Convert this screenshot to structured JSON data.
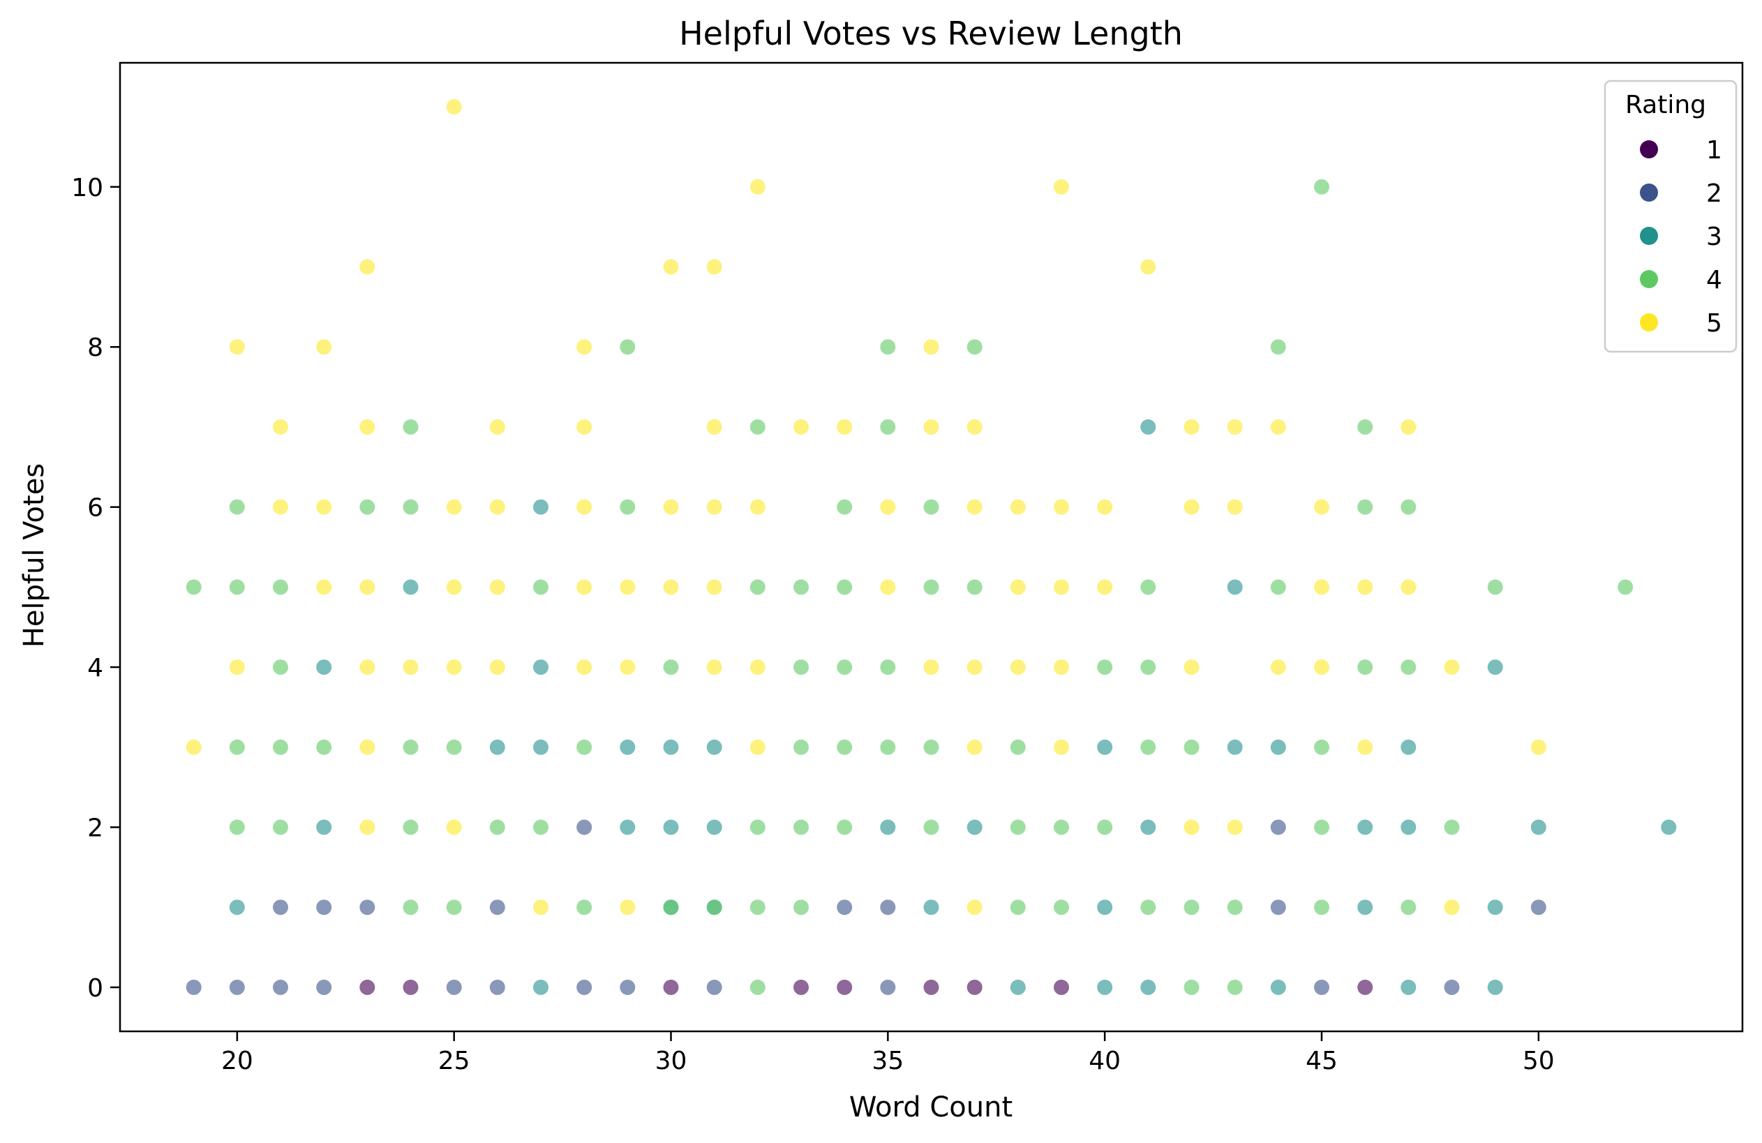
{
  "chart_data": {
    "type": "scatter",
    "title": "Helpful Votes vs Review Length",
    "xlabel": "Word Count",
    "ylabel": "Helpful Votes",
    "xlim": [
      17.3,
      54.7
    ],
    "ylim": [
      -0.55,
      11.55
    ],
    "xticks": [
      20,
      25,
      30,
      35,
      40,
      45,
      50
    ],
    "yticks": [
      0,
      2,
      4,
      6,
      8,
      10
    ],
    "grid": false,
    "legend": {
      "title": "Rating",
      "placement": "top-right",
      "entries": [
        {
          "label": "1",
          "color": "#440154"
        },
        {
          "label": "2",
          "color": "#3b528b"
        },
        {
          "label": "3",
          "color": "#21918c"
        },
        {
          "label": "4",
          "color": "#5ec962"
        },
        {
          "label": "5",
          "color": "#fde725"
        }
      ]
    },
    "colors": {
      "1": "#440154",
      "2": "#3b528b",
      "3": "#21918c",
      "4": "#5ec962",
      "5": "#fde725"
    },
    "series": [
      {
        "name": "1",
        "points": [
          [
            23,
            0
          ],
          [
            24,
            0
          ],
          [
            30,
            0
          ],
          [
            33,
            0
          ],
          [
            34,
            0
          ],
          [
            36,
            0
          ],
          [
            37,
            0
          ],
          [
            39,
            0
          ],
          [
            46,
            0
          ]
        ]
      },
      {
        "name": "2",
        "points": [
          [
            19,
            0
          ],
          [
            20,
            0
          ],
          [
            21,
            0
          ],
          [
            22,
            0
          ],
          [
            25,
            0
          ],
          [
            26,
            0
          ],
          [
            28,
            0
          ],
          [
            29,
            0
          ],
          [
            31,
            0
          ],
          [
            35,
            0
          ],
          [
            45,
            0
          ],
          [
            48,
            0
          ],
          [
            21,
            1
          ],
          [
            22,
            1
          ],
          [
            23,
            1
          ],
          [
            26,
            1
          ],
          [
            34,
            1
          ],
          [
            35,
            1
          ],
          [
            44,
            1
          ],
          [
            50,
            1
          ],
          [
            28,
            2
          ],
          [
            44,
            2
          ]
        ]
      },
      {
        "name": "3",
        "points": [
          [
            27,
            0
          ],
          [
            38,
            0
          ],
          [
            40,
            0
          ],
          [
            41,
            0
          ],
          [
            44,
            0
          ],
          [
            47,
            0
          ],
          [
            49,
            0
          ],
          [
            20,
            1
          ],
          [
            30,
            1
          ],
          [
            31,
            1
          ],
          [
            36,
            1
          ],
          [
            40,
            1
          ],
          [
            46,
            1
          ],
          [
            49,
            1
          ],
          [
            22,
            2
          ],
          [
            29,
            2
          ],
          [
            30,
            2
          ],
          [
            31,
            2
          ],
          [
            35,
            2
          ],
          [
            37,
            2
          ],
          [
            41,
            2
          ],
          [
            46,
            2
          ],
          [
            47,
            2
          ],
          [
            50,
            2
          ],
          [
            53,
            2
          ],
          [
            26,
            3
          ],
          [
            27,
            3
          ],
          [
            29,
            3
          ],
          [
            30,
            3
          ],
          [
            31,
            3
          ],
          [
            40,
            3
          ],
          [
            43,
            3
          ],
          [
            44,
            3
          ],
          [
            47,
            3
          ],
          [
            22,
            4
          ],
          [
            27,
            4
          ],
          [
            49,
            4
          ],
          [
            24,
            5
          ],
          [
            43,
            5
          ],
          [
            27,
            6
          ],
          [
            41,
            7
          ]
        ]
      },
      {
        "name": "4",
        "points": [
          [
            32,
            0
          ],
          [
            42,
            0
          ],
          [
            43,
            0
          ],
          [
            24,
            1
          ],
          [
            25,
            1
          ],
          [
            28,
            1
          ],
          [
            30,
            1
          ],
          [
            31,
            1
          ],
          [
            32,
            1
          ],
          [
            33,
            1
          ],
          [
            38,
            1
          ],
          [
            39,
            1
          ],
          [
            41,
            1
          ],
          [
            42,
            1
          ],
          [
            43,
            1
          ],
          [
            45,
            1
          ],
          [
            47,
            1
          ],
          [
            20,
            2
          ],
          [
            21,
            2
          ],
          [
            24,
            2
          ],
          [
            26,
            2
          ],
          [
            27,
            2
          ],
          [
            32,
            2
          ],
          [
            33,
            2
          ],
          [
            34,
            2
          ],
          [
            36,
            2
          ],
          [
            38,
            2
          ],
          [
            39,
            2
          ],
          [
            40,
            2
          ],
          [
            45,
            2
          ],
          [
            48,
            2
          ],
          [
            20,
            3
          ],
          [
            21,
            3
          ],
          [
            22,
            3
          ],
          [
            24,
            3
          ],
          [
            25,
            3
          ],
          [
            28,
            3
          ],
          [
            33,
            3
          ],
          [
            34,
            3
          ],
          [
            35,
            3
          ],
          [
            36,
            3
          ],
          [
            38,
            3
          ],
          [
            41,
            3
          ],
          [
            42,
            3
          ],
          [
            45,
            3
          ],
          [
            21,
            4
          ],
          [
            30,
            4
          ],
          [
            33,
            4
          ],
          [
            34,
            4
          ],
          [
            35,
            4
          ],
          [
            40,
            4
          ],
          [
            41,
            4
          ],
          [
            46,
            4
          ],
          [
            47,
            4
          ],
          [
            19,
            5
          ],
          [
            20,
            5
          ],
          [
            21,
            5
          ],
          [
            27,
            5
          ],
          [
            32,
            5
          ],
          [
            33,
            5
          ],
          [
            34,
            5
          ],
          [
            36,
            5
          ],
          [
            37,
            5
          ],
          [
            41,
            5
          ],
          [
            44,
            5
          ],
          [
            49,
            5
          ],
          [
            52,
            5
          ],
          [
            20,
            6
          ],
          [
            23,
            6
          ],
          [
            24,
            6
          ],
          [
            29,
            6
          ],
          [
            34,
            6
          ],
          [
            36,
            6
          ],
          [
            46,
            6
          ],
          [
            47,
            6
          ],
          [
            24,
            7
          ],
          [
            32,
            7
          ],
          [
            35,
            7
          ],
          [
            46,
            7
          ],
          [
            29,
            8
          ],
          [
            35,
            8
          ],
          [
            37,
            8
          ],
          [
            44,
            8
          ],
          [
            45,
            10
          ]
        ]
      },
      {
        "name": "5",
        "points": [
          [
            27,
            1
          ],
          [
            29,
            1
          ],
          [
            37,
            1
          ],
          [
            48,
            1
          ],
          [
            23,
            2
          ],
          [
            25,
            2
          ],
          [
            42,
            2
          ],
          [
            43,
            2
          ],
          [
            19,
            3
          ],
          [
            23,
            3
          ],
          [
            32,
            3
          ],
          [
            37,
            3
          ],
          [
            39,
            3
          ],
          [
            46,
            3
          ],
          [
            50,
            3
          ],
          [
            20,
            4
          ],
          [
            23,
            4
          ],
          [
            24,
            4
          ],
          [
            25,
            4
          ],
          [
            26,
            4
          ],
          [
            28,
            4
          ],
          [
            29,
            4
          ],
          [
            31,
            4
          ],
          [
            32,
            4
          ],
          [
            36,
            4
          ],
          [
            37,
            4
          ],
          [
            38,
            4
          ],
          [
            39,
            4
          ],
          [
            42,
            4
          ],
          [
            44,
            4
          ],
          [
            45,
            4
          ],
          [
            48,
            4
          ],
          [
            22,
            5
          ],
          [
            23,
            5
          ],
          [
            25,
            5
          ],
          [
            26,
            5
          ],
          [
            28,
            5
          ],
          [
            29,
            5
          ],
          [
            30,
            5
          ],
          [
            31,
            5
          ],
          [
            35,
            5
          ],
          [
            38,
            5
          ],
          [
            39,
            5
          ],
          [
            40,
            5
          ],
          [
            45,
            5
          ],
          [
            46,
            5
          ],
          [
            47,
            5
          ],
          [
            21,
            6
          ],
          [
            22,
            6
          ],
          [
            25,
            6
          ],
          [
            26,
            6
          ],
          [
            28,
            6
          ],
          [
            30,
            6
          ],
          [
            31,
            6
          ],
          [
            32,
            6
          ],
          [
            35,
            6
          ],
          [
            37,
            6
          ],
          [
            38,
            6
          ],
          [
            39,
            6
          ],
          [
            40,
            6
          ],
          [
            42,
            6
          ],
          [
            43,
            6
          ],
          [
            45,
            6
          ],
          [
            21,
            7
          ],
          [
            23,
            7
          ],
          [
            26,
            7
          ],
          [
            28,
            7
          ],
          [
            31,
            7
          ],
          [
            33,
            7
          ],
          [
            34,
            7
          ],
          [
            36,
            7
          ],
          [
            37,
            7
          ],
          [
            42,
            7
          ],
          [
            43,
            7
          ],
          [
            44,
            7
          ],
          [
            47,
            7
          ],
          [
            20,
            8
          ],
          [
            22,
            8
          ],
          [
            28,
            8
          ],
          [
            36,
            8
          ],
          [
            23,
            9
          ],
          [
            30,
            9
          ],
          [
            31,
            9
          ],
          [
            41,
            9
          ],
          [
            32,
            10
          ],
          [
            39,
            10
          ],
          [
            25,
            11
          ]
        ]
      }
    ]
  }
}
